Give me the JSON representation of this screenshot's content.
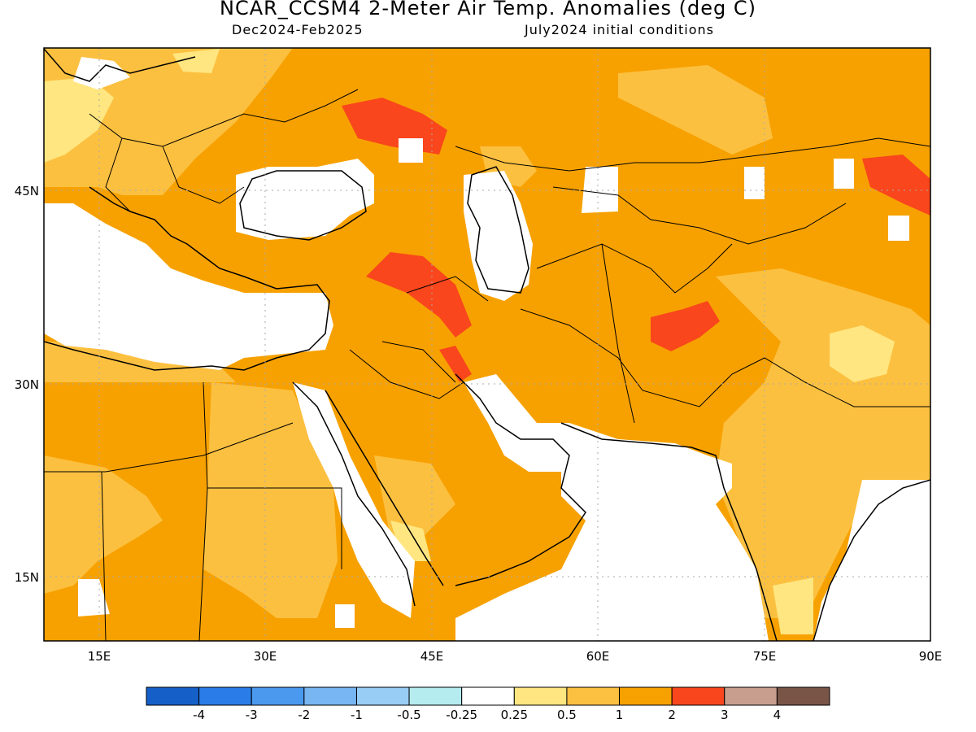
{
  "header": {
    "title": "NCAR_CCSM4 2-Meter Air Temp. Anomalies (deg C)",
    "period": "Dec2024-Feb2025",
    "initial_conditions": "July2024 initial conditions"
  },
  "map": {
    "lon_range": [
      10,
      90
    ],
    "lat_range": [
      10,
      55
    ],
    "lon_ticks": [
      15,
      30,
      45,
      60,
      75,
      90
    ],
    "lon_labels": [
      "15E",
      "30E",
      "45E",
      "60E",
      "75E",
      "90E"
    ],
    "lat_ticks": [
      45,
      30,
      15
    ],
    "lat_labels": [
      "45N",
      "30N",
      "15N"
    ]
  },
  "legend": {
    "colors": [
      "#1560c8",
      "#2a7de8",
      "#4a99ee",
      "#78b6f2",
      "#98cdf6",
      "#b4ecf0",
      "#ffffff",
      "#ffe680",
      "#fcc040",
      "#f7a100",
      "#f9461c",
      "#c89f8f",
      "#795548"
    ],
    "labels": [
      "-4",
      "-3",
      "-2",
      "-1",
      "-0.5",
      "-0.25",
      "0.25",
      "0.5",
      "1",
      "2",
      "3",
      "4"
    ]
  }
}
